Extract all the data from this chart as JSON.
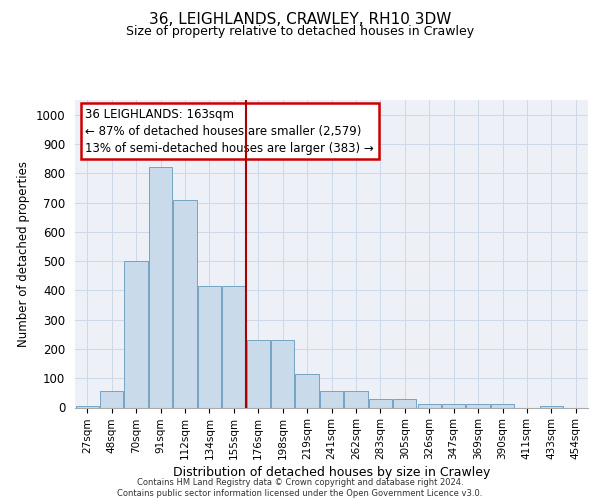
{
  "title1": "36, LEIGHLANDS, CRAWLEY, RH10 3DW",
  "title2": "Size of property relative to detached houses in Crawley",
  "xlabel": "Distribution of detached houses by size in Crawley",
  "ylabel": "Number of detached properties",
  "categories": [
    "27sqm",
    "48sqm",
    "70sqm",
    "91sqm",
    "112sqm",
    "134sqm",
    "155sqm",
    "176sqm",
    "198sqm",
    "219sqm",
    "241sqm",
    "262sqm",
    "283sqm",
    "305sqm",
    "326sqm",
    "347sqm",
    "369sqm",
    "390sqm",
    "411sqm",
    "433sqm",
    "454sqm"
  ],
  "values": [
    5,
    57,
    500,
    820,
    710,
    415,
    415,
    230,
    230,
    115,
    57,
    57,
    30,
    30,
    12,
    12,
    12,
    12,
    0,
    5,
    0
  ],
  "bar_color": "#c9daea",
  "bar_edge_color": "#6699bb",
  "vline_pos": 6.5,
  "vline_color": "#aa0000",
  "annotation_text": "36 LEIGHLANDS: 163sqm\n← 87% of detached houses are smaller (2,579)\n13% of semi-detached houses are larger (383) →",
  "annotation_box_facecolor": "#ffffff",
  "annotation_box_edgecolor": "#cc0000",
  "ylim": [
    0,
    1050
  ],
  "yticks": [
    0,
    100,
    200,
    300,
    400,
    500,
    600,
    700,
    800,
    900,
    1000
  ],
  "footnote1": "Contains HM Land Registry data © Crown copyright and database right 2024.",
  "footnote2": "Contains public sector information licensed under the Open Government Licence v3.0.",
  "grid_color": "#cdd8e8",
  "axes_bg_color": "#edf1f7",
  "fig_bg_color": "#ffffff"
}
